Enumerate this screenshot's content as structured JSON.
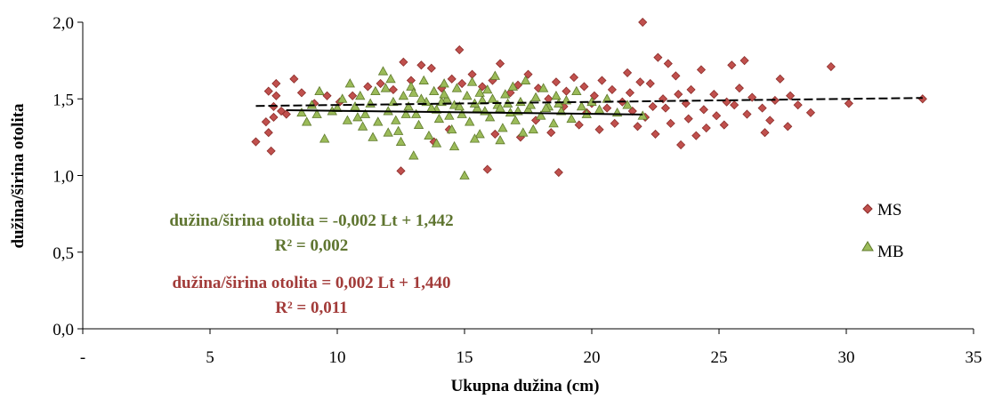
{
  "chart_data": {
    "type": "scatter",
    "title": "",
    "xlabel": "Ukupna dužina (cm)",
    "ylabel": "dužina/širina otolita",
    "xlim": [
      0,
      35
    ],
    "ylim": [
      0,
      2.0
    ],
    "x_ticks": [
      0,
      5,
      10,
      15,
      20,
      25,
      30,
      35
    ],
    "x_tick_labels": [
      "-",
      "5",
      "10",
      "15",
      "20",
      "25",
      "30",
      "35"
    ],
    "y_ticks": [
      0,
      0.5,
      1.0,
      1.5,
      2.0
    ],
    "y_tick_labels": [
      "0,0",
      "0,5",
      "1,0",
      "1,5",
      "2,0"
    ],
    "grid": false,
    "legend_position": "right",
    "colors": {
      "MS": "#c0504d",
      "MS_edge": "#8b2d2a",
      "MB": "#9bbb59",
      "MB_edge": "#5f7a2c",
      "trend": "#000000",
      "eq_MB": "#5f7530",
      "eq_MS": "#a23b39"
    },
    "series": [
      {
        "name": "MS",
        "marker": "diamond",
        "trend": {
          "slope": 0.002,
          "intercept": 1.44,
          "x_range": [
            6.8,
            33.0
          ]
        },
        "points": [
          [
            6.8,
            1.22
          ],
          [
            7.3,
            1.55
          ],
          [
            7.5,
            1.45
          ],
          [
            7.6,
            1.52
          ],
          [
            7.2,
            1.35
          ],
          [
            7.4,
            1.16
          ],
          [
            7.6,
            1.6
          ],
          [
            7.8,
            1.42
          ],
          [
            8.0,
            1.4
          ],
          [
            8.3,
            1.63
          ],
          [
            7.3,
            1.28
          ],
          [
            7.5,
            1.38
          ],
          [
            12.5,
            1.03
          ],
          [
            14.8,
            1.82
          ],
          [
            15.9,
            1.04
          ],
          [
            18.7,
            1.02
          ],
          [
            22.0,
            2.0
          ],
          [
            22.6,
            1.77
          ],
          [
            23.0,
            1.73
          ],
          [
            25.5,
            1.72
          ],
          [
            26.0,
            1.75
          ],
          [
            29.4,
            1.71
          ],
          [
            30.1,
            1.47
          ],
          [
            33.0,
            1.5
          ],
          [
            23.5,
            1.2
          ],
          [
            24.1,
            1.26
          ],
          [
            26.8,
            1.28
          ],
          [
            27.7,
            1.32
          ],
          [
            28.6,
            1.41
          ],
          [
            27.4,
            1.63
          ],
          [
            27.0,
            1.36
          ],
          [
            25.2,
            1.33
          ],
          [
            24.5,
            1.31
          ],
          [
            23.8,
            1.37
          ],
          [
            23.1,
            1.34
          ],
          [
            22.5,
            1.27
          ],
          [
            21.4,
            1.67
          ],
          [
            21.9,
            1.61
          ],
          [
            22.3,
            1.6
          ],
          [
            23.3,
            1.65
          ],
          [
            23.9,
            1.56
          ],
          [
            24.3,
            1.69
          ],
          [
            24.8,
            1.53
          ],
          [
            25.3,
            1.48
          ],
          [
            25.8,
            1.57
          ],
          [
            26.3,
            1.51
          ],
          [
            26.7,
            1.44
          ],
          [
            27.2,
            1.49
          ],
          [
            27.8,
            1.52
          ],
          [
            28.1,
            1.46
          ],
          [
            26.1,
            1.4
          ],
          [
            25.6,
            1.46
          ],
          [
            24.9,
            1.39
          ],
          [
            24.4,
            1.43
          ],
          [
            23.7,
            1.47
          ],
          [
            23.4,
            1.53
          ],
          [
            22.8,
            1.5
          ],
          [
            22.4,
            1.45
          ],
          [
            22.1,
            1.38
          ],
          [
            21.6,
            1.42
          ],
          [
            21.2,
            1.48
          ],
          [
            20.8,
            1.56
          ],
          [
            20.4,
            1.62
          ],
          [
            20.1,
            1.52
          ],
          [
            19.7,
            1.58
          ],
          [
            19.3,
            1.64
          ],
          [
            19.0,
            1.55
          ],
          [
            18.6,
            1.61
          ],
          [
            18.3,
            1.5
          ],
          [
            17.9,
            1.57
          ],
          [
            17.5,
            1.66
          ],
          [
            17.1,
            1.59
          ],
          [
            16.8,
            1.54
          ],
          [
            16.4,
            1.73
          ],
          [
            16.1,
            1.62
          ],
          [
            15.7,
            1.58
          ],
          [
            15.3,
            1.66
          ],
          [
            14.9,
            1.6
          ],
          [
            14.5,
            1.63
          ],
          [
            14.1,
            1.57
          ],
          [
            13.7,
            1.7
          ],
          [
            13.3,
            1.72
          ],
          [
            12.9,
            1.62
          ],
          [
            12.6,
            1.74
          ],
          [
            12.2,
            1.56
          ],
          [
            11.7,
            1.6
          ],
          [
            11.2,
            1.58
          ],
          [
            10.6,
            1.52
          ],
          [
            10.1,
            1.48
          ],
          [
            9.6,
            1.52
          ],
          [
            9.1,
            1.47
          ],
          [
            8.6,
            1.54
          ],
          [
            13.8,
            1.22
          ],
          [
            14.4,
            1.3
          ],
          [
            16.2,
            1.27
          ],
          [
            17.2,
            1.25
          ],
          [
            17.8,
            1.36
          ],
          [
            18.4,
            1.28
          ],
          [
            19.5,
            1.33
          ],
          [
            20.3,
            1.3
          ],
          [
            20.9,
            1.34
          ],
          [
            21.8,
            1.32
          ],
          [
            22.9,
            1.44
          ],
          [
            20.6,
            1.44
          ],
          [
            19.8,
            1.41
          ],
          [
            18.9,
            1.45
          ],
          [
            21.5,
            1.54
          ],
          [
            20.0,
            1.47
          ]
        ]
      },
      {
        "name": "MB",
        "marker": "triangle",
        "trend": {
          "slope": -0.002,
          "intercept": 1.442,
          "x_range": [
            8.0,
            22.0
          ]
        },
        "points": [
          [
            15.0,
            1.0
          ],
          [
            13.0,
            1.13
          ],
          [
            9.5,
            1.24
          ],
          [
            8.8,
            1.35
          ],
          [
            9.0,
            1.46
          ],
          [
            9.3,
            1.55
          ],
          [
            9.8,
            1.42
          ],
          [
            10.2,
            1.5
          ],
          [
            10.5,
            1.6
          ],
          [
            10.8,
            1.38
          ],
          [
            11.0,
            1.32
          ],
          [
            11.3,
            1.47
          ],
          [
            11.5,
            1.55
          ],
          [
            11.8,
            1.68
          ],
          [
            12.0,
            1.42
          ],
          [
            12.1,
            1.63
          ],
          [
            12.3,
            1.36
          ],
          [
            12.4,
            1.29
          ],
          [
            12.6,
            1.52
          ],
          [
            12.8,
            1.45
          ],
          [
            12.9,
            1.58
          ],
          [
            13.1,
            1.4
          ],
          [
            13.2,
            1.33
          ],
          [
            13.4,
            1.62
          ],
          [
            13.5,
            1.48
          ],
          [
            13.6,
            1.26
          ],
          [
            13.8,
            1.55
          ],
          [
            13.9,
            1.43
          ],
          [
            14.0,
            1.37
          ],
          [
            14.2,
            1.6
          ],
          [
            14.3,
            1.5
          ],
          [
            14.5,
            1.3
          ],
          [
            14.6,
            1.46
          ],
          [
            14.7,
            1.57
          ],
          [
            14.9,
            1.4
          ],
          [
            15.1,
            1.52
          ],
          [
            15.2,
            1.35
          ],
          [
            15.3,
            1.61
          ],
          [
            15.5,
            1.44
          ],
          [
            15.6,
            1.27
          ],
          [
            15.7,
            1.49
          ],
          [
            15.9,
            1.56
          ],
          [
            16.0,
            1.38
          ],
          [
            16.2,
            1.65
          ],
          [
            16.3,
            1.46
          ],
          [
            16.5,
            1.31
          ],
          [
            16.6,
            1.53
          ],
          [
            16.8,
            1.41
          ],
          [
            16.9,
            1.58
          ],
          [
            17.0,
            1.36
          ],
          [
            17.2,
            1.48
          ],
          [
            17.4,
            1.62
          ],
          [
            17.5,
            1.43
          ],
          [
            17.7,
            1.3
          ],
          [
            17.8,
            1.51
          ],
          [
            18.0,
            1.39
          ],
          [
            18.1,
            1.57
          ],
          [
            18.3,
            1.45
          ],
          [
            18.5,
            1.34
          ],
          [
            18.6,
            1.52
          ],
          [
            18.8,
            1.42
          ],
          [
            19.0,
            1.49
          ],
          [
            19.2,
            1.37
          ],
          [
            19.4,
            1.55
          ],
          [
            19.6,
            1.45
          ],
          [
            19.8,
            1.4
          ],
          [
            20.0,
            1.48
          ],
          [
            20.3,
            1.43
          ],
          [
            20.6,
            1.5
          ],
          [
            21.0,
            1.41
          ],
          [
            21.4,
            1.46
          ],
          [
            22.0,
            1.39
          ],
          [
            11.1,
            1.4
          ],
          [
            11.6,
            1.35
          ],
          [
            12.2,
            1.48
          ],
          [
            12.7,
            1.4
          ],
          [
            13.3,
            1.5
          ],
          [
            13.7,
            1.44
          ],
          [
            14.1,
            1.48
          ],
          [
            14.4,
            1.39
          ],
          [
            14.8,
            1.45
          ],
          [
            15.4,
            1.47
          ],
          [
            15.8,
            1.42
          ],
          [
            16.1,
            1.5
          ],
          [
            16.4,
            1.44
          ],
          [
            16.7,
            1.47
          ],
          [
            17.1,
            1.42
          ],
          [
            17.6,
            1.46
          ],
          [
            18.2,
            1.44
          ],
          [
            18.7,
            1.47
          ],
          [
            10.0,
            1.44
          ],
          [
            10.4,
            1.36
          ],
          [
            10.7,
            1.45
          ],
          [
            9.2,
            1.4
          ],
          [
            8.6,
            1.41
          ],
          [
            12.5,
            1.22
          ],
          [
            13.9,
            1.21
          ],
          [
            14.6,
            1.19
          ],
          [
            15.4,
            1.24
          ],
          [
            16.4,
            1.23
          ],
          [
            17.3,
            1.28
          ],
          [
            12.0,
            1.28
          ],
          [
            11.4,
            1.25
          ],
          [
            10.9,
            1.52
          ],
          [
            11.9,
            1.57
          ],
          [
            13.0,
            1.54
          ],
          [
            14.2,
            1.53
          ],
          [
            15.6,
            1.54
          ]
        ]
      }
    ],
    "annotations": [
      {
        "series": "MB",
        "equation": "dužina/širina otolita = -0,002 Lt + 1,442",
        "r2": "R² = 0,002"
      },
      {
        "series": "MS",
        "equation": "dužina/širina otolita  = 0,002 Lt + 1,440",
        "r2": "R² = 0,011"
      }
    ]
  }
}
